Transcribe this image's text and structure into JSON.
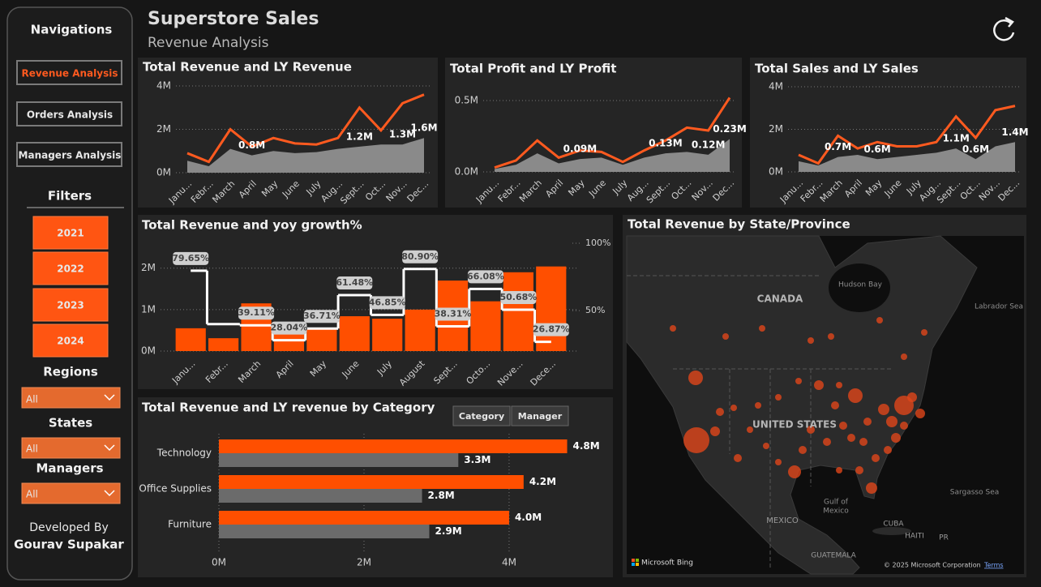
{
  "header": {
    "title": "Superstore Sales",
    "subtitle": "Revenue Analysis"
  },
  "sidebar": {
    "navigation_title": "Navigations",
    "nav_buttons": [
      "Revenue Analysis",
      "Orders Analysis",
      "Managers Analysis"
    ],
    "filters_title": "Filters",
    "year_buttons": [
      "2021",
      "2022",
      "2023",
      "2024"
    ],
    "dropdowns": [
      {
        "label": "Regions",
        "value": "All"
      },
      {
        "label": "States",
        "value": "All"
      },
      {
        "label": "Managers",
        "value": "All"
      }
    ],
    "credit_label": "Developed By",
    "credit_name": "Gourav Supakar"
  },
  "chart_data": [
    {
      "type": "line",
      "title": "Total Revenue and LY Revenue",
      "categories": [
        "Janu...",
        "Febr...",
        "March",
        "April",
        "May",
        "June",
        "July",
        "Aug...",
        "Sept...",
        "Oct...",
        "Nov...",
        "Dec..."
      ],
      "series": [
        {
          "color": "#8a8a8a",
          "area": true,
          "values": [
            0.55,
            0.3,
            1.1,
            0.8,
            1.0,
            0.9,
            0.95,
            1.1,
            1.2,
            1.3,
            1.3,
            1.6
          ],
          "value_labels": [
            null,
            null,
            null,
            "0.8M",
            null,
            null,
            null,
            null,
            "1.2M",
            null,
            "1.3M",
            "1.6M"
          ]
        },
        {
          "color": "#ff5a1f",
          "area": false,
          "values": [
            0.9,
            0.5,
            2.0,
            1.2,
            1.6,
            1.35,
            1.3,
            1.6,
            3.0,
            1.95,
            3.2,
            3.6
          ]
        }
      ],
      "ylim": [
        0,
        4
      ],
      "yticks": [
        {
          "value": 0,
          "label": "0M"
        },
        {
          "value": 2,
          "label": "2M"
        },
        {
          "value": 4,
          "label": "4M"
        }
      ],
      "grid": true
    },
    {
      "type": "line",
      "title": "Total Profit and LY Profit",
      "categories": [
        "Janu...",
        "Febr...",
        "March",
        "April",
        "May",
        "June",
        "July",
        "Aug...",
        "Sept...",
        "Oct...",
        "Nov...",
        "Dec..."
      ],
      "series": [
        {
          "color": "#8a8a8a",
          "area": true,
          "values": [
            0.02,
            0.05,
            0.13,
            0.06,
            0.09,
            0.1,
            0.05,
            0.1,
            0.13,
            0.14,
            0.12,
            0.23
          ],
          "value_labels": [
            null,
            null,
            null,
            null,
            "0.09M",
            null,
            null,
            null,
            "0.13M",
            null,
            "0.12M",
            "0.23M"
          ]
        },
        {
          "color": "#ff5a1f",
          "area": false,
          "values": [
            0.03,
            0.08,
            0.22,
            0.1,
            0.15,
            0.14,
            0.07,
            0.15,
            0.22,
            0.31,
            0.29,
            0.52
          ]
        }
      ],
      "ylim": [
        0,
        0.5
      ],
      "yticks": [
        {
          "value": 0,
          "label": "0.0M"
        },
        {
          "value": 0.5,
          "label": "0.5M"
        }
      ],
      "grid": true
    },
    {
      "type": "line",
      "title": "Total Sales and LY Sales",
      "categories": [
        "Janu...",
        "Febr...",
        "March",
        "April",
        "May",
        "June",
        "July",
        "Aug...",
        "Sept...",
        "Oct...",
        "Nov...",
        "Dec..."
      ],
      "series": [
        {
          "color": "#8a8a8a",
          "area": true,
          "values": [
            0.5,
            0.3,
            0.7,
            0.8,
            0.6,
            0.7,
            0.8,
            0.9,
            1.1,
            0.6,
            1.2,
            1.4
          ],
          "value_labels": [
            null,
            null,
            "0.7M",
            null,
            "0.6M",
            null,
            null,
            null,
            "1.1M",
            "0.6M",
            null,
            "1.4M"
          ]
        },
        {
          "color": "#ff5a1f",
          "area": false,
          "values": [
            0.8,
            0.4,
            1.7,
            1.1,
            1.4,
            1.2,
            1.2,
            1.4,
            2.6,
            1.6,
            2.9,
            3.1
          ]
        }
      ],
      "ylim": [
        0,
        4
      ],
      "yticks": [
        {
          "value": 0,
          "label": "0M"
        },
        {
          "value": 2,
          "label": "2M"
        },
        {
          "value": 4,
          "label": "4M"
        }
      ],
      "grid": true
    },
    {
      "type": "bar-line",
      "title": "Total Revenue and yoy growth%",
      "categories": [
        "Janu...",
        "Febr...",
        "March",
        "April",
        "May",
        "June",
        "July",
        "August",
        "Sept...",
        "Octo...",
        "Nove...",
        "Dece..."
      ],
      "series": [
        {
          "color": "#ff4f00",
          "values": [
            0.55,
            0.31,
            1.15,
            0.45,
            0.55,
            0.84,
            0.78,
            1.0,
            1.7,
            1.2,
            1.9,
            2.04
          ]
        },
        {
          "color": "#ffffff",
          "axis": "y2",
          "values": [
            79.65,
            40,
            39.11,
            28.04,
            36.71,
            61.48,
            46.85,
            80.9,
            38.31,
            66.08,
            50.68,
            26.87
          ],
          "value_labels": [
            "79.65%",
            null,
            "39.11%",
            "28.04%",
            "36.71%",
            "61.48%",
            "46.85%",
            "80.90%",
            "38.31%",
            "66.08%",
            "50.68%",
            "26.87%"
          ]
        }
      ],
      "ylim": [
        0,
        2.6
      ],
      "yticks": [
        {
          "value": 0,
          "label": "0M"
        },
        {
          "value": 1,
          "label": "1M"
        },
        {
          "value": 2,
          "label": "2M"
        }
      ],
      "y2lim": [
        20,
        100
      ],
      "y2ticks": [
        {
          "value": 50,
          "label": "50%"
        },
        {
          "value": 100,
          "label": "100%"
        }
      ],
      "grid": true
    },
    {
      "type": "hbar",
      "title": "Total Revenue and LY revenue by Category",
      "toggle_buttons": [
        "Category",
        "Manager"
      ],
      "categories": [
        "Technology",
        "Office Supplies",
        "Furniture"
      ],
      "series": [
        {
          "color": "#ff4f00",
          "values": [
            4.8,
            4.2,
            4.0
          ],
          "value_labels": [
            "4.8M",
            "4.2M",
            "4.0M"
          ]
        },
        {
          "color": "#6b6b6b",
          "values": [
            3.3,
            2.8,
            2.9
          ],
          "value_labels": [
            "3.3M",
            "2.8M",
            "2.9M"
          ]
        }
      ],
      "xlim": [
        0,
        4.85
      ],
      "xticks": [
        {
          "value": 0,
          "label": "0M"
        },
        {
          "value": 2,
          "label": "2M"
        },
        {
          "value": 4,
          "label": "4M"
        }
      ],
      "grid": true
    }
  ],
  "map": {
    "title": "Total Revenue by State/Province",
    "labels": [
      "CANADA",
      "UNITED STATES",
      "Hudson Bay",
      "Labrador Sea",
      "Gulf of",
      "Mexico",
      "MEXICO",
      "CUBA",
      "HAITI",
      "PR",
      "Sargasso Sea",
      "GUATEMALA"
    ],
    "provider": "Microsoft Bing",
    "copyright": "© 2025 Microsoft Corporation",
    "terms": "Terms"
  }
}
